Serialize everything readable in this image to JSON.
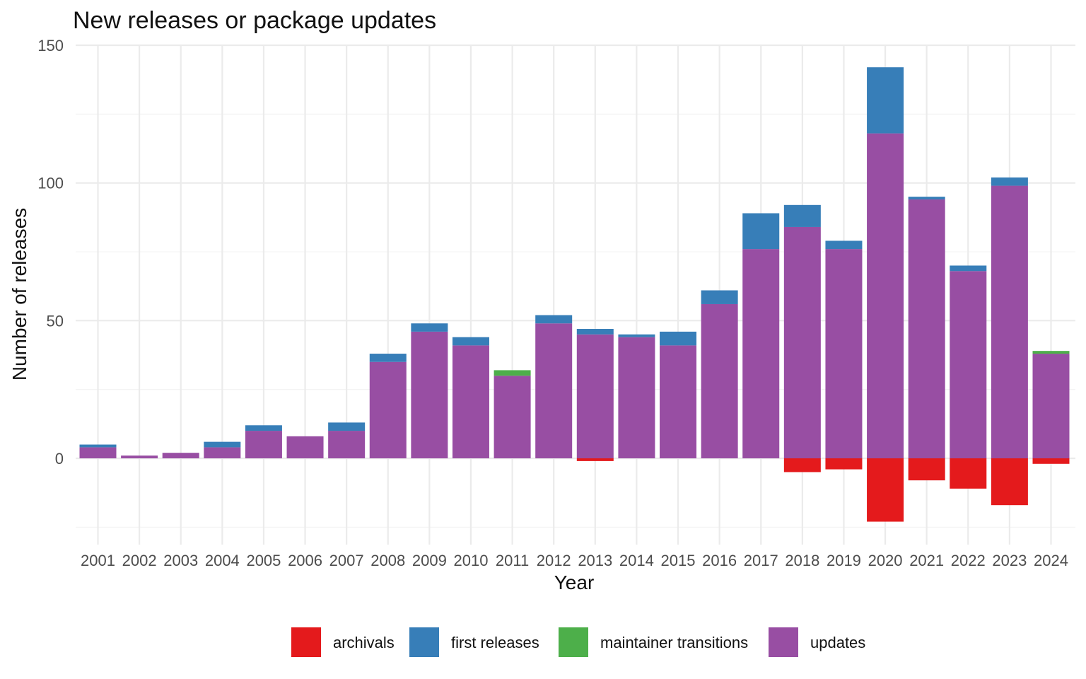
{
  "chart_data": {
    "type": "bar",
    "stacked": true,
    "title": "New releases or package updates",
    "xlabel": "Year",
    "ylabel": "Number of releases",
    "ylim": [
      -26,
      150
    ],
    "yticks": [
      0,
      50,
      100,
      150
    ],
    "grid": true,
    "legend_position": "bottom",
    "categories": [
      "2001",
      "2002",
      "2003",
      "2004",
      "2005",
      "2006",
      "2007",
      "2008",
      "2009",
      "2010",
      "2011",
      "2012",
      "2013",
      "2014",
      "2015",
      "2016",
      "2017",
      "2018",
      "2019",
      "2020",
      "2021",
      "2022",
      "2023",
      "2024"
    ],
    "series": [
      {
        "name": "archivals",
        "color": "#e41a1c",
        "values": [
          0,
          0,
          0,
          0,
          0,
          0,
          0,
          0,
          0,
          0,
          0,
          0,
          -1,
          0,
          0,
          0,
          0,
          -5,
          -4,
          -23,
          -8,
          -11,
          -17,
          -2
        ]
      },
      {
        "name": "first releases",
        "color": "#377eb8",
        "values": [
          1,
          0,
          0,
          2,
          2,
          0,
          3,
          3,
          3,
          3,
          0,
          3,
          2,
          1,
          5,
          5,
          13,
          8,
          3,
          24,
          1,
          2,
          3,
          0
        ]
      },
      {
        "name": "maintainer transitions",
        "color": "#4daf4a",
        "values": [
          0,
          0,
          0,
          0,
          0,
          0,
          0,
          0,
          0,
          0,
          2,
          0,
          0,
          0,
          0,
          0,
          0,
          0,
          0,
          0,
          0,
          0,
          0,
          1
        ]
      },
      {
        "name": "updates",
        "color": "#984ea3",
        "values": [
          4,
          1,
          2,
          4,
          10,
          8,
          10,
          35,
          46,
          41,
          30,
          49,
          45,
          44,
          41,
          56,
          76,
          84,
          76,
          118,
          94,
          68,
          99,
          38
        ]
      }
    ],
    "stack_order_from_zero": [
      "updates",
      "maintainer transitions",
      "first releases"
    ]
  }
}
